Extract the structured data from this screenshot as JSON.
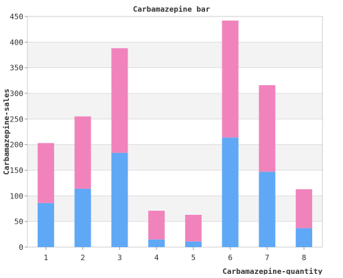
{
  "chart_data": {
    "type": "bar",
    "stacked": true,
    "title": "Carbamazepine bar",
    "xlabel": "Carbamazepine-quantity",
    "ylabel": "Carbamazepine-sales",
    "categories": [
      "1",
      "2",
      "3",
      "4",
      "5",
      "6",
      "7",
      "8"
    ],
    "ylim": [
      0,
      450
    ],
    "yticks": [
      0,
      50,
      100,
      150,
      200,
      250,
      300,
      350,
      400,
      450
    ],
    "grid": true,
    "banded_background": true,
    "series": [
      {
        "values": [
          86,
          114,
          184,
          15,
          11,
          214,
          147,
          37
        ],
        "color": "#5fa8f5"
      },
      {
        "values": [
          117,
          141,
          204,
          56,
          52,
          228,
          169,
          76
        ],
        "color": "#f183bc"
      }
    ]
  }
}
